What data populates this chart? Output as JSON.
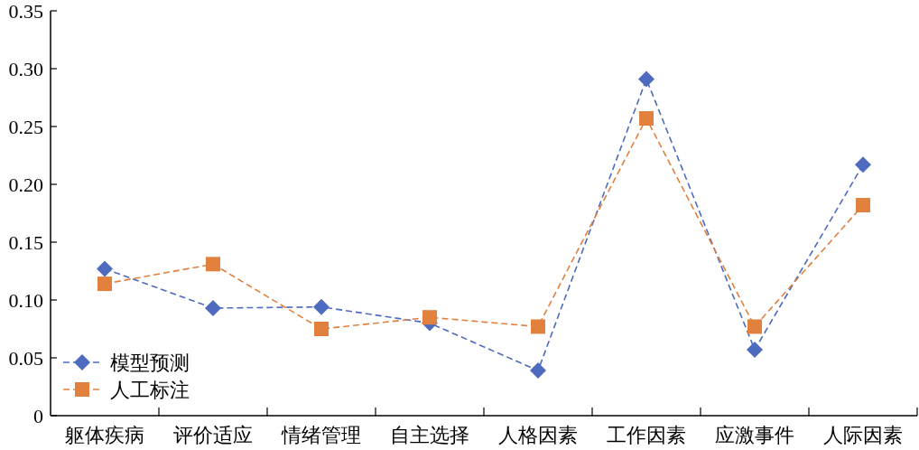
{
  "chart_data": {
    "type": "line",
    "categories": [
      "躯体疾病",
      "评价适应",
      "情绪管理",
      "自主选择",
      "人格因素",
      "工作因素",
      "应激事件",
      "人际因素"
    ],
    "series": [
      {
        "name": "模型预测",
        "color": "#4e6bc0",
        "marker": "diamond",
        "values": [
          0.127,
          0.093,
          0.094,
          0.08,
          0.039,
          0.291,
          0.057,
          0.217
        ]
      },
      {
        "name": "人工标注",
        "color": "#e2803e",
        "marker": "square",
        "values": [
          0.114,
          0.131,
          0.075,
          0.085,
          0.077,
          0.257,
          0.077,
          0.182
        ]
      }
    ],
    "ylim": [
      0,
      0.35
    ],
    "yticks": [
      0,
      0.05,
      {
        "value": 0.1,
        "label": "0.10"
      },
      0.15,
      {
        "value": 0.2,
        "label": "0.20"
      },
      0.25,
      {
        "value": 0.3,
        "label": "0.30"
      },
      0.35
    ],
    "line_style": "dashed",
    "legend": "bottom left"
  }
}
